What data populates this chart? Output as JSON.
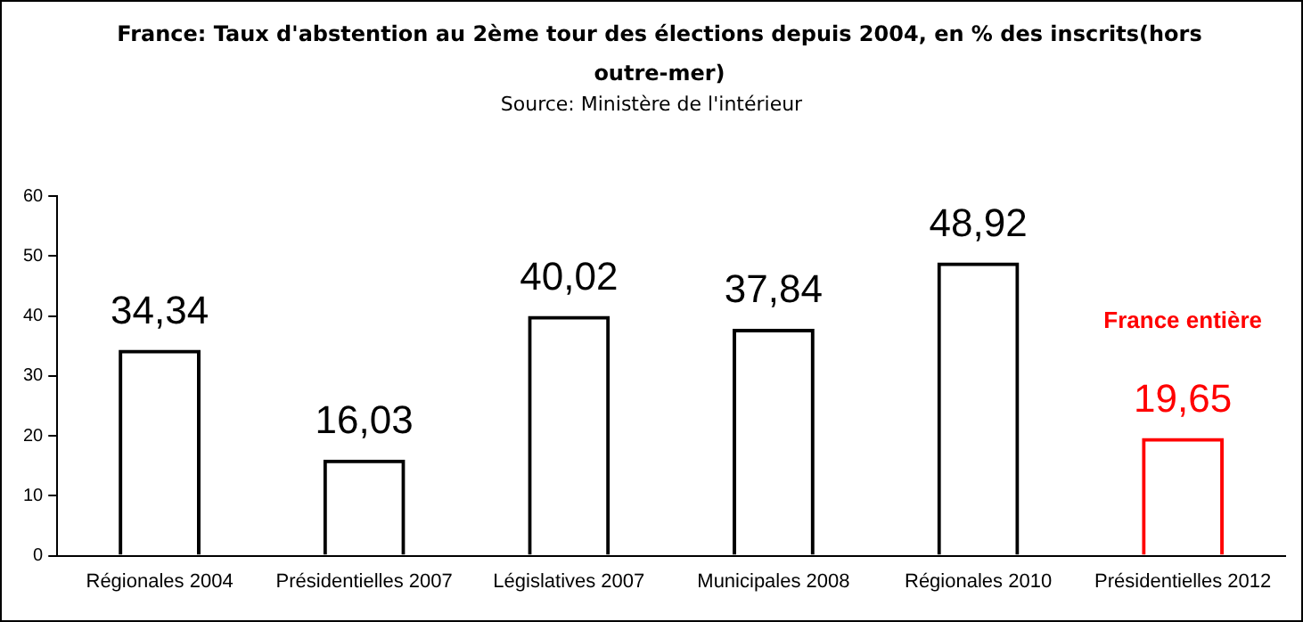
{
  "chart_data": {
    "type": "bar",
    "title": "France: Taux d'abstention au 2ème tour des élections depuis 2004, en % des inscrits(hors outre-mer)",
    "subtitle": "Source: Ministère de l'intérieur",
    "categories": [
      "Régionales 2004",
      "Présidentielles 2007",
      "Législatives 2007",
      "Municipales 2008",
      "Régionales 2010",
      "Présidentielles 2012"
    ],
    "values": [
      34.34,
      16.03,
      40.02,
      37.84,
      48.92,
      19.65
    ],
    "colors": [
      "#000000",
      "#000000",
      "#000000",
      "#000000",
      "#000000",
      "#ff0000"
    ],
    "value_labels": [
      "34,34",
      "16,03",
      "40,02",
      "37,84",
      "48,92",
      "19,65"
    ],
    "annotations": [
      "France entière"
    ],
    "ylim": [
      0,
      60
    ],
    "yticks": [
      0,
      10,
      20,
      30,
      40,
      50,
      60
    ],
    "grid": false,
    "legend": false
  }
}
